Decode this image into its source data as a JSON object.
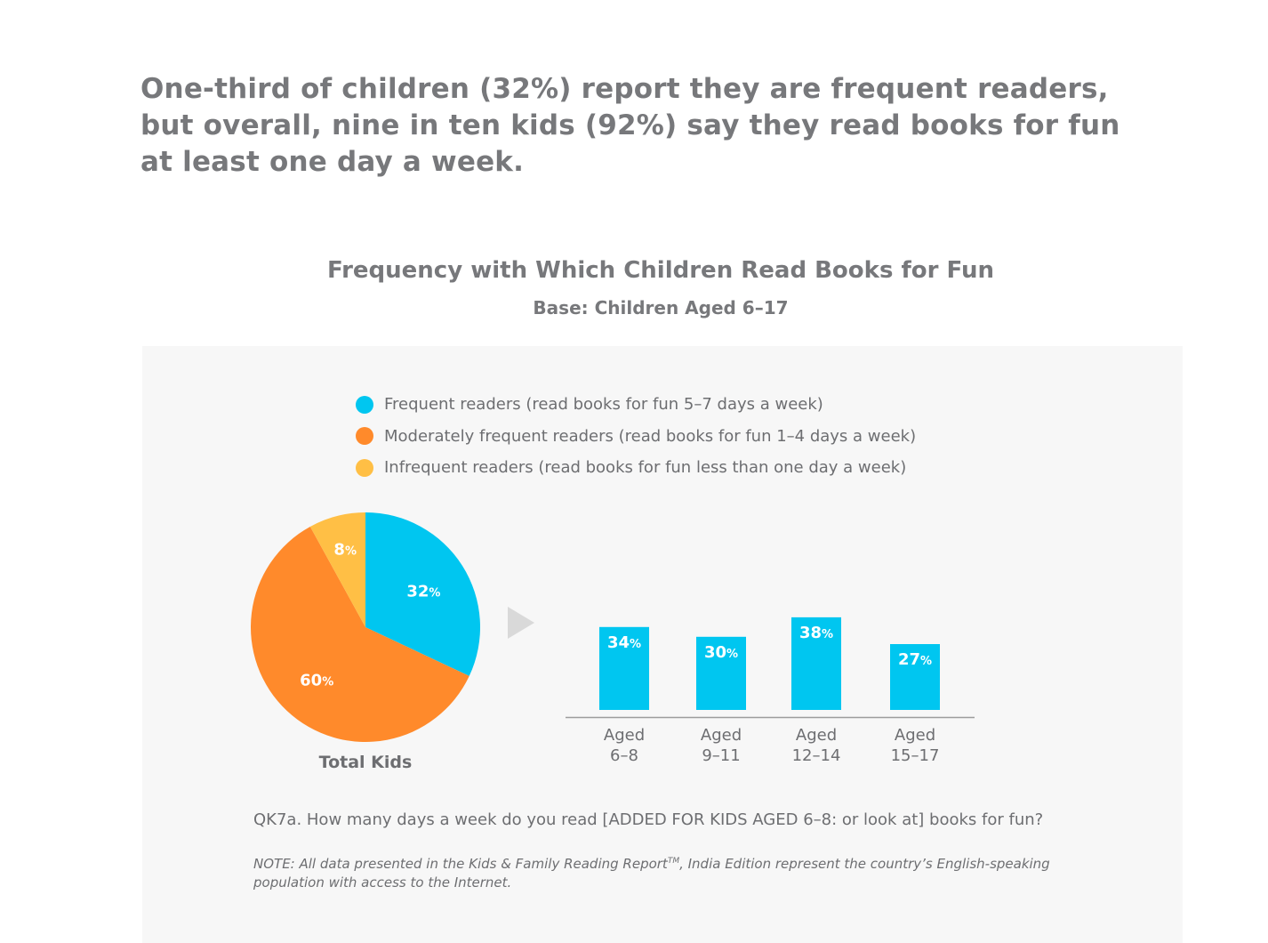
{
  "headline": "One-third of children (32%) report they are frequent readers, but overall, nine in ten kids (92%) say they read books for fun at least one day a week.",
  "chart_data": [
    {
      "type": "pie",
      "title": "Frequency with Which Children Read Books for Fun",
      "subtitle": "Base: Children Aged 6–17",
      "label": "Total Kids",
      "slices": [
        {
          "name": "Frequent readers (read books for fun 5–7 days a week)",
          "value": 32,
          "display": "32%",
          "color": "#00c6f0"
        },
        {
          "name": "Moderately frequent readers (read books for fun 1–4 days a week)",
          "value": 60,
          "display": "60%",
          "color": "#ff8a2b"
        },
        {
          "name": "Infrequent readers (read books for fun less than one day a week)",
          "value": 8,
          "display": "8%",
          "color": "#ffbf45"
        }
      ],
      "legend_position": "top"
    },
    {
      "type": "bar",
      "categories": [
        {
          "line1": "Aged",
          "line2": "6–8"
        },
        {
          "line1": "Aged",
          "line2": "9–11"
        },
        {
          "line1": "Aged",
          "line2": "12–14"
        },
        {
          "line1": "Aged",
          "line2": "15–17"
        }
      ],
      "series": [
        {
          "values": [
            34,
            30,
            38,
            27
          ],
          "labels": [
            "34%",
            "30%",
            "38%",
            "27%"
          ],
          "color": "#00c6f0"
        }
      ],
      "ylim": [
        0,
        100
      ],
      "grid": false
    }
  ],
  "legend": [
    {
      "label": "Frequent readers (read books for fun 5–7 days a week)",
      "color": "#00c6f0"
    },
    {
      "label": "Moderately frequent readers (read books for fun 1–4 days a week)",
      "color": "#ff8a2b"
    },
    {
      "label": "Infrequent readers (read books for fun less than one day a week)",
      "color": "#ffbf45"
    }
  ],
  "question": "QK7a. How many days a week do you read [ADDED FOR KIDS AGED 6–8: or look at] books for fun?",
  "note": {
    "before": "NOTE: All data presented in the Kids & Family Reading Report",
    "sup": "TM",
    "after": ", India Edition represent the country’s English-speaking population with access to the Internet."
  },
  "arrow_icon": "play-arrow-icon"
}
